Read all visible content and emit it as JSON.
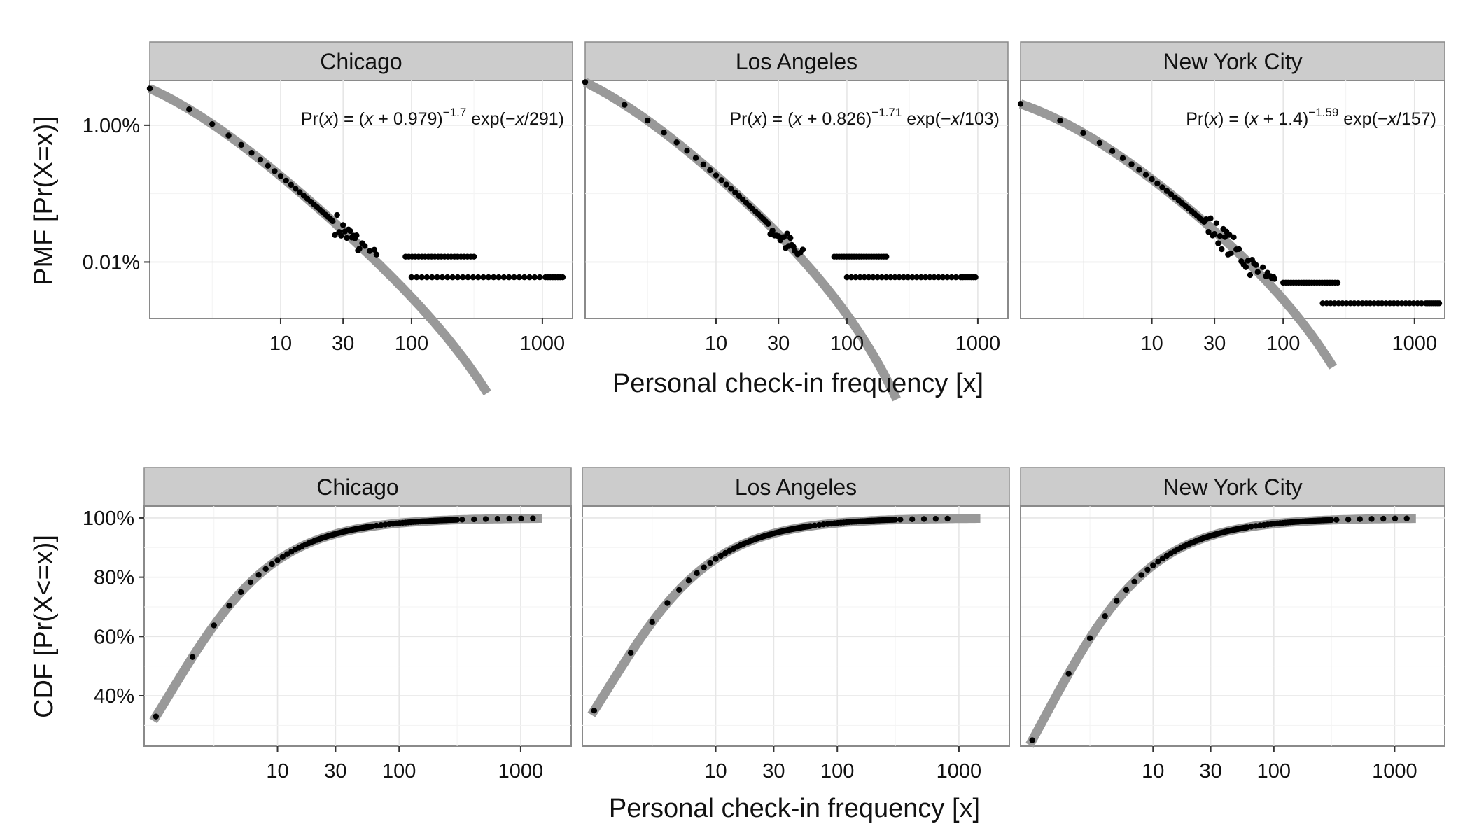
{
  "figure": {
    "top_row": {
      "ylabel": "PMF [Pr(X=x)]",
      "xlabel": "Personal check-in frequency [x]"
    },
    "bottom_row": {
      "ylabel": "CDF [Pr(X<=x)]",
      "xlabel": "Personal check-in frequency [x]"
    }
  },
  "colors": {
    "strip_fill": "#cccccc",
    "panel_border": "#8a8a8a",
    "gridline": "#e6e6e6",
    "fit_line": "#999999",
    "points": "#000000"
  },
  "chart_data": [
    {
      "type": "scatter",
      "panel": "Chicago",
      "row": "PMF",
      "x_scale": "log10",
      "y_scale": "log10",
      "x_ticks": [
        "10",
        "30",
        "100",
        "1000"
      ],
      "x_tick_values": [
        10,
        30,
        100,
        1000
      ],
      "y_ticks": [
        "1.00%",
        "0.01%"
      ],
      "y_tick_values": [
        0.01,
        0.0001
      ],
      "xlim": [
        1,
        1700
      ],
      "ylim": [
        1.5e-05,
        0.045
      ],
      "formula": {
        "prefix": "Pr(",
        "var": "x",
        "mid": ") = (",
        "var2": "x",
        "plus": " + 0.979)",
        "exponent": "−1.7",
        "tail": " exp(−",
        "var3": "x",
        "slash": "/",
        "denom": "291)"
      },
      "fit": {
        "alpha": 1.7,
        "shift": 0.979,
        "cutoff": 291,
        "norm": 0.11,
        "x_range": [
          1,
          380
        ]
      },
      "tail": {
        "n1_x_min": 100,
        "n1_x_max": 1500,
        "n1_y": 6e-05,
        "n2_x_min": 90,
        "n2_x_max": 300,
        "n2_y": 0.00012
      },
      "series": [
        {
          "name": "",
          "values": "observed PMF (points)"
        }
      ]
    },
    {
      "type": "scatter",
      "panel": "Los Angeles",
      "row": "PMF",
      "x_scale": "log10",
      "y_scale": "log10",
      "x_ticks": [
        "10",
        "30",
        "100",
        "1000"
      ],
      "x_tick_values": [
        10,
        30,
        100,
        1000
      ],
      "ylim": [
        1.5e-05,
        0.045
      ],
      "xlim": [
        1,
        1700
      ],
      "formula": {
        "prefix": "Pr(",
        "var": "x",
        "mid": ") = (",
        "var2": "x",
        "plus": " + 0.826)",
        "exponent": "−1.71",
        "tail": " exp(−",
        "var3": "x",
        "slash": "/",
        "denom": "103)"
      },
      "fit": {
        "alpha": 1.71,
        "shift": 0.826,
        "cutoff": 103,
        "norm": 0.12,
        "x_range": [
          1,
          240
        ]
      },
      "tail": {
        "n1_x_min": 100,
        "n1_x_max": 1000,
        "n1_y": 6e-05,
        "n2_x_min": 80,
        "n2_x_max": 200,
        "n2_y": 0.00012
      }
    },
    {
      "type": "scatter",
      "panel": "New York City",
      "row": "PMF",
      "x_scale": "log10",
      "y_scale": "log10",
      "x_ticks": [
        "10",
        "30",
        "100",
        "1000"
      ],
      "x_tick_values": [
        10,
        30,
        100,
        1000
      ],
      "ylim": [
        1.5e-05,
        0.045
      ],
      "xlim": [
        1,
        1700
      ],
      "formula": {
        "prefix": "Pr(",
        "var": "x",
        "mid": ") = (",
        "var2": "x",
        "plus": " + 1.4)",
        "exponent": "−1.59",
        "tail": " exp(−",
        "var3": "x",
        "slash": "/",
        "denom": "157)"
      },
      "fit": {
        "alpha": 1.59,
        "shift": 1.4,
        "cutoff": 157,
        "norm": 0.083,
        "x_range": [
          1,
          240
        ]
      },
      "tail": {
        "n1_x_min": 200,
        "n1_x_max": 1600,
        "n1_y": 2.5e-05,
        "n2_x_min": 100,
        "n2_x_max": 260,
        "n2_y": 5e-05
      }
    },
    {
      "type": "scatter",
      "panel": "Chicago",
      "row": "CDF",
      "x_scale": "log10",
      "x_ticks": [
        "10",
        "30",
        "100",
        "1000"
      ],
      "x_tick_values": [
        10,
        30,
        100,
        1000
      ],
      "y_ticks": [
        "100%",
        "80%",
        "60%",
        "40%"
      ],
      "y_tick_values": [
        1.0,
        0.8,
        0.6,
        0.4
      ],
      "xlim": [
        0.8,
        2600
      ],
      "ylim": [
        0.23,
        1.04
      ],
      "first_value": 0.33,
      "fit_x_max": 1500,
      "point_x_max": 1500
    },
    {
      "type": "scatter",
      "panel": "Los Angeles",
      "row": "CDF",
      "x_scale": "log10",
      "x_ticks": [
        "10",
        "30",
        "100",
        "1000"
      ],
      "x_tick_values": [
        10,
        30,
        100,
        1000
      ],
      "xlim": [
        0.8,
        2600
      ],
      "ylim": [
        0.23,
        1.04
      ],
      "first_value": 0.35,
      "fit_x_max": 1500,
      "point_x_max": 1000
    },
    {
      "type": "scatter",
      "panel": "New York City",
      "row": "CDF",
      "x_scale": "log10",
      "x_ticks": [
        "10",
        "30",
        "100",
        "1000"
      ],
      "x_tick_values": [
        10,
        30,
        100,
        1000
      ],
      "xlim": [
        0.8,
        2600
      ],
      "ylim": [
        0.23,
        1.04
      ],
      "first_value": 0.25,
      "fit_x_max": 1500,
      "point_x_max": 1500
    }
  ]
}
